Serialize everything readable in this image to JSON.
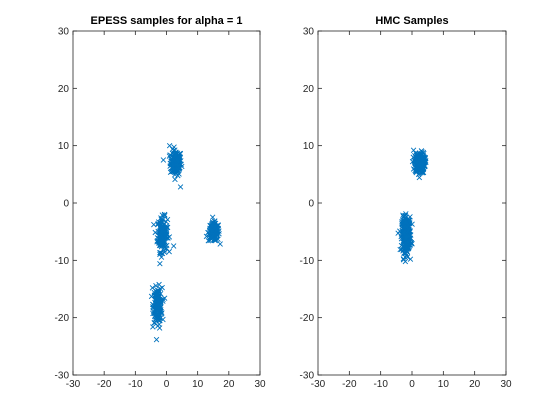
{
  "chart_data": [
    {
      "type": "scatter",
      "title": "EPESS samples for alpha = 1",
      "xlabel": "",
      "ylabel": "",
      "xlim": [
        -30,
        30
      ],
      "ylim": [
        -30,
        30
      ],
      "xticks": [
        -30,
        -20,
        -10,
        0,
        10,
        20,
        30
      ],
      "yticks": [
        -30,
        -20,
        -10,
        0,
        10,
        20,
        30
      ],
      "marker": "x",
      "color": "#0072BD",
      "box": true,
      "grid": false,
      "clusters": [
        {
          "center": [
            3,
            7
          ],
          "spread": [
            0.9,
            1.1
          ],
          "count": 140
        },
        {
          "center": [
            -1.3,
            -5.5
          ],
          "spread": [
            0.8,
            1.5
          ],
          "count": 160
        },
        {
          "center": [
            15.2,
            -5.1
          ],
          "spread": [
            0.9,
            0.8
          ],
          "count": 140
        },
        {
          "center": [
            -2.8,
            -17.8
          ],
          "spread": [
            0.7,
            1.5
          ],
          "count": 160
        }
      ],
      "outliers": [
        [
          1,
          10
        ],
        [
          4.5,
          2.8
        ],
        [
          -1,
          7.5
        ],
        [
          2.3,
          -7.5
        ],
        [
          -2.2,
          -21.8
        ],
        [
          -4.5,
          -14.8
        ]
      ]
    },
    {
      "type": "scatter",
      "title": "HMC Samples",
      "xlabel": "",
      "ylabel": "",
      "xlim": [
        -30,
        30
      ],
      "ylim": [
        -30,
        30
      ],
      "xticks": [
        -30,
        -20,
        -10,
        0,
        10,
        20,
        30
      ],
      "yticks": [
        -30,
        -20,
        -10,
        0,
        10,
        20,
        30
      ],
      "marker": "x",
      "color": "#0072BD",
      "box": true,
      "grid": false,
      "clusters": [
        {
          "center": [
            2.5,
            7
          ],
          "spread": [
            0.8,
            0.9
          ],
          "count": 260
        },
        {
          "center": [
            -1.8,
            -5.5
          ],
          "spread": [
            0.7,
            1.5
          ],
          "count": 300
        }
      ],
      "outliers": [
        [
          -0.5,
          -9.8
        ],
        [
          0.5,
          9.2
        ]
      ]
    }
  ]
}
